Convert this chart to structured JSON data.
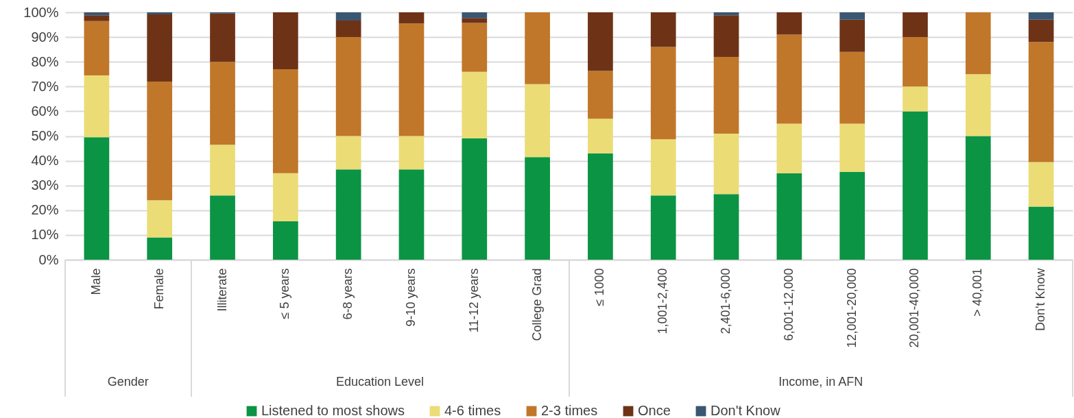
{
  "chart_data": {
    "type": "bar",
    "stacked": true,
    "categories": [
      "Male",
      "Female",
      "Illiterate",
      "≤ 5 years",
      "6-8 years",
      "9-10 years",
      "11-12 years",
      "College Grad",
      "≤ 1000",
      "1,001-2,400",
      "2,401-6,000",
      "6,001-12,000",
      "12,001-20,000",
      "20,001-40,000",
      "> 40,001",
      "Don't Know"
    ],
    "series": [
      {
        "name": "Listened to most shows",
        "color": "#0b9444",
        "values": [
          49.5,
          9,
          26,
          15.5,
          36.5,
          36.5,
          49,
          41.5,
          43,
          26,
          26.5,
          35,
          35.5,
          60,
          50,
          21.5
        ]
      },
      {
        "name": "4-6 times",
        "color": "#ebdc76",
        "values": [
          25,
          15,
          20.5,
          19.5,
          13.5,
          13.5,
          27,
          29.5,
          14,
          22.7,
          24.5,
          20,
          19.5,
          10,
          25,
          18
        ]
      },
      {
        "name": "2-3 times",
        "color": "#c0772a",
        "values": [
          22,
          48,
          33.5,
          42,
          40,
          45.5,
          19.7,
          29,
          19.3,
          37.3,
          31,
          36,
          29,
          20,
          25,
          48.5
        ]
      },
      {
        "name": "Once",
        "color": "#6e3317",
        "values": [
          2.3,
          27.2,
          19.5,
          23,
          6.7,
          4.5,
          2,
          0,
          23.7,
          14,
          16.8,
          9,
          13,
          10,
          0,
          9
        ]
      },
      {
        "name": "Don't Know",
        "color": "#3a5672",
        "values": [
          1.2,
          0.8,
          0.5,
          0,
          3.3,
          0,
          2.3,
          0,
          0,
          0,
          1.2,
          0,
          3,
          0,
          0,
          3
        ]
      }
    ],
    "ylim": [
      0,
      100
    ],
    "yticks": [
      {
        "value": 0,
        "label": "0%"
      },
      {
        "value": 10,
        "label": "10%"
      },
      {
        "value": 20,
        "label": "20%"
      },
      {
        "value": 30,
        "label": "30%"
      },
      {
        "value": 40,
        "label": "40%"
      },
      {
        "value": 50,
        "label": "50%"
      },
      {
        "value": 60,
        "label": "60%"
      },
      {
        "value": 70,
        "label": "70%"
      },
      {
        "value": 80,
        "label": "80%"
      },
      {
        "value": 90,
        "label": "90%"
      },
      {
        "value": 100,
        "label": "100%"
      }
    ],
    "grid": "y",
    "legend": "bottom",
    "annotations": [
      "Gender",
      "Education Level",
      "Income, in AFN"
    ]
  }
}
